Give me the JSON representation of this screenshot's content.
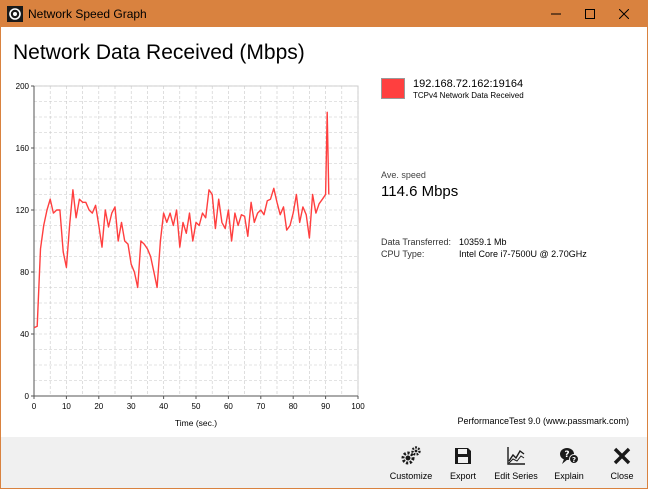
{
  "window": {
    "title": "Network Speed Graph",
    "accent_color": "#d9823f",
    "controls": {
      "minimize_icon": "minimize-icon",
      "maximize_icon": "maximize-icon",
      "close_icon": "close-icon"
    }
  },
  "heading": "Network Data Received (Mbps)",
  "legend": {
    "name": "192.168.72.162:19164",
    "description": "TCPv4 Network Data Received",
    "color": "#ff3f3f"
  },
  "stats": {
    "ave_label": "Ave. speed",
    "ave_value": "114.6 Mbps",
    "rows": [
      {
        "label": "Data Transferred:",
        "value": "10359.1 Mb"
      },
      {
        "label": "CPU Type:",
        "value": "Intel Core i7-7500U @ 2.70GHz"
      }
    ]
  },
  "credit": "PerformanceTest 9.0 (www.passmark.com)",
  "chart_data": {
    "type": "line",
    "xlabel": "Time (sec.)",
    "ylabel": "",
    "xlim": [
      0,
      100
    ],
    "ylim": [
      0,
      200
    ],
    "xticks": [
      "0",
      "10",
      "20",
      "30",
      "40",
      "50",
      "60",
      "70",
      "80",
      "90",
      "100"
    ],
    "yticks": [
      "0",
      "40",
      "80",
      "120",
      "160",
      "200"
    ],
    "grid": true,
    "series": [
      {
        "name": "192.168.72.162:19164",
        "color": "#ff3f3f",
        "x": [
          0,
          1,
          2,
          3,
          4,
          5,
          6,
          7,
          8,
          9,
          10,
          11,
          12,
          13,
          14,
          15,
          16,
          17,
          18,
          19,
          20,
          21,
          22,
          23,
          24,
          25,
          26,
          27,
          28,
          29,
          30,
          31,
          32,
          33,
          34,
          35,
          36,
          37,
          38,
          39,
          40,
          41,
          42,
          43,
          44,
          45,
          46,
          47,
          48,
          49,
          50,
          51,
          52,
          53,
          54,
          55,
          56,
          57,
          58,
          59,
          60,
          61,
          62,
          63,
          64,
          65,
          66,
          67,
          68,
          69,
          70,
          71,
          72,
          73,
          74,
          75,
          76,
          77,
          78,
          79,
          80,
          81,
          82,
          83,
          84,
          85,
          86,
          87,
          88,
          89,
          90,
          90.5,
          91
        ],
        "y": [
          44,
          45,
          95,
          110,
          120,
          127,
          118,
          120,
          120,
          93,
          83,
          110,
          133,
          115,
          127,
          125,
          125,
          120,
          118,
          123,
          110,
          96,
          120,
          109,
          118,
          122,
          100,
          112,
          100,
          98,
          85,
          80,
          70,
          100,
          98,
          95,
          90,
          80,
          70,
          100,
          118,
          112,
          118,
          110,
          120,
          96,
          112,
          105,
          118,
          100,
          112,
          110,
          118,
          115,
          133,
          130,
          108,
          127,
          112,
          108,
          120,
          100,
          118,
          110,
          117,
          116,
          103,
          125,
          112,
          118,
          120,
          117,
          126,
          127,
          134,
          125,
          117,
          122,
          107,
          110,
          118,
          130,
          112,
          122,
          117,
          102,
          130,
          118,
          124,
          127,
          130,
          183,
          130
        ]
      }
    ]
  },
  "toolbar": {
    "items": [
      {
        "name": "customize-button",
        "icon": "gears-icon",
        "label": "Customize"
      },
      {
        "name": "export-button",
        "icon": "floppy-icon",
        "label": "Export"
      },
      {
        "name": "edit-series-button",
        "icon": "chart-line-icon",
        "label": "Edit Series"
      },
      {
        "name": "explain-button",
        "icon": "help-bubble-icon",
        "label": "Explain"
      },
      {
        "name": "close-button",
        "icon": "x-icon",
        "label": "Close"
      }
    ]
  }
}
